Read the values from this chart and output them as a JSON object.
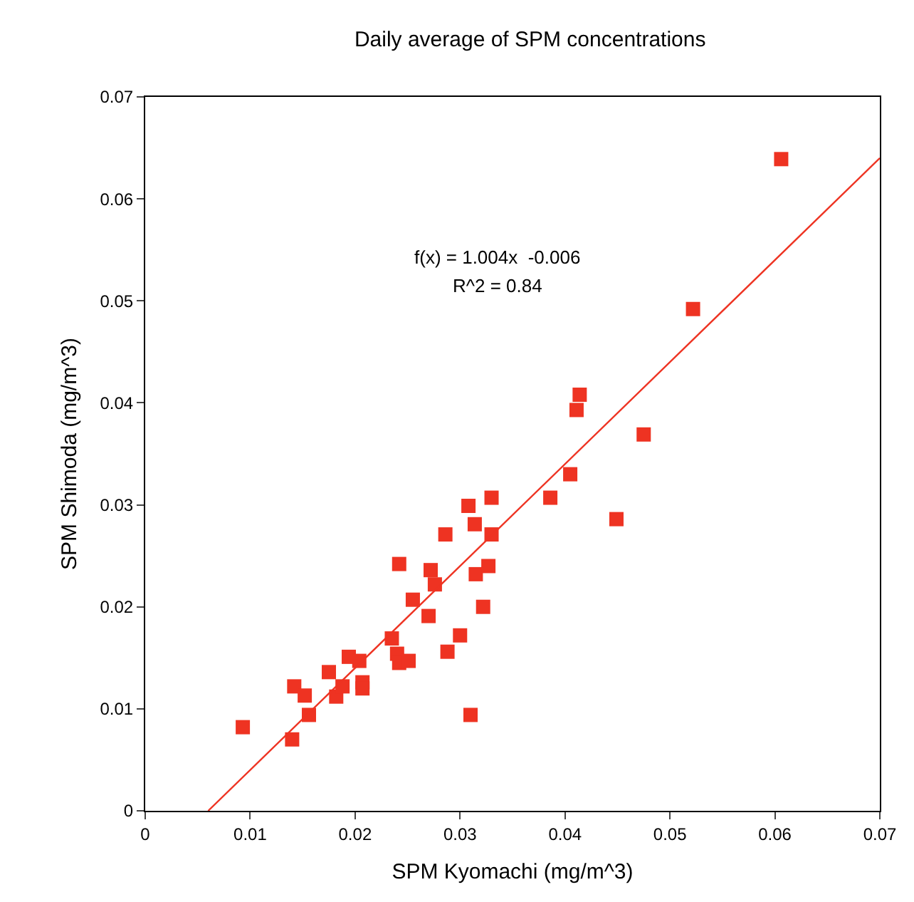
{
  "chart_data": {
    "type": "scatter",
    "title": "Daily average of SPM concentrations",
    "xlabel": "SPM Kyomachi (mg/m^3)",
    "ylabel": "SPM Shimoda (mg/m^3)",
    "annotations": [
      "f(x) = 1.004x  -0.006",
      "R^2 = 0.84"
    ],
    "xlim": [
      0,
      0.07
    ],
    "ylim": [
      0,
      0.07
    ],
    "xticks": [
      0,
      0.01,
      0.02,
      0.03,
      0.04,
      0.05,
      0.06,
      0.07
    ],
    "yticks": [
      0,
      0.01,
      0.02,
      0.03,
      0.04,
      0.05,
      0.06,
      0.07
    ],
    "grid": false,
    "marker": "square",
    "series": [
      {
        "color": "#ee3322",
        "x": [
          0.0093,
          0.014,
          0.0142,
          0.0152,
          0.0156,
          0.0175,
          0.0182,
          0.0188,
          0.0194,
          0.0204,
          0.0207,
          0.0207,
          0.0235,
          0.024,
          0.0242,
          0.0251,
          0.0242,
          0.0255,
          0.027,
          0.0272,
          0.0276,
          0.0288,
          0.0286,
          0.03,
          0.031,
          0.0308,
          0.0314,
          0.0315,
          0.0327,
          0.0322,
          0.033,
          0.033,
          0.0386,
          0.0405,
          0.0411,
          0.0414,
          0.0449,
          0.0475,
          0.0522,
          0.0606
        ],
        "values": [
          0.0082,
          0.007,
          0.0122,
          0.0113,
          0.0094,
          0.0136,
          0.0112,
          0.0122,
          0.0151,
          0.0147,
          0.0126,
          0.012,
          0.0169,
          0.0154,
          0.0145,
          0.0147,
          0.0242,
          0.0207,
          0.0191,
          0.0236,
          0.0222,
          0.0156,
          0.0271,
          0.0172,
          0.0094,
          0.0299,
          0.0281,
          0.0232,
          0.024,
          0.02,
          0.0307,
          0.0271,
          0.0307,
          0.033,
          0.0393,
          0.0408,
          0.0286,
          0.0369,
          0.0492,
          0.0639
        ]
      },
      {
        "type": "line",
        "color": "#ee3322",
        "line_style": "solid",
        "marker": "none",
        "x": [
          0.006,
          0.07
        ],
        "values": [
          0,
          0.064
        ]
      }
    ]
  }
}
